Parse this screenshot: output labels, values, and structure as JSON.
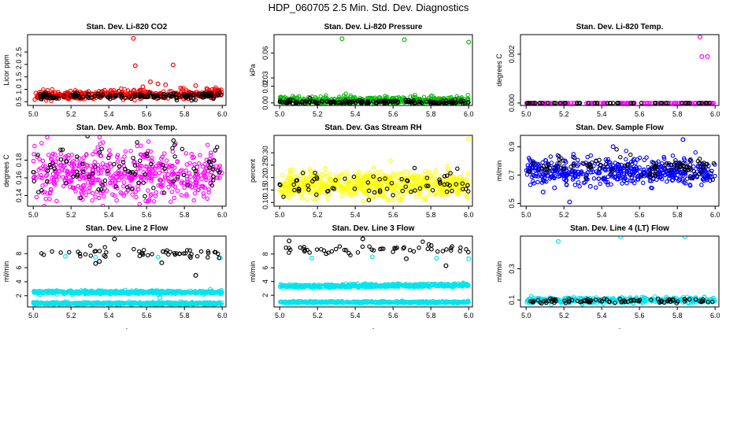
{
  "figure": {
    "title": "HDP_060705  2.5 Min. Std. Dev. Diagnostics",
    "xlabel": "."
  },
  "chart_data": [
    {
      "type": "scatter",
      "title": "Stan. Dev. Li-820 CO2",
      "ylabel": "Licor ppm",
      "xlim": [
        4.97,
        6.02
      ],
      "ylim": [
        0.35,
        3.2
      ],
      "xticks": [
        {
          "v": 5.0,
          "label": "5.0"
        },
        {
          "v": 5.2,
          "label": "5.2"
        },
        {
          "v": 5.4,
          "label": "5.4"
        },
        {
          "v": 5.6,
          "label": "5.6"
        },
        {
          "v": 5.8,
          "label": "5.8"
        },
        {
          "v": 6.0,
          "label": "6.0"
        }
      ],
      "yticks": [
        {
          "v": 0.5,
          "label": "0.5"
        },
        {
          "v": 1.0,
          "label": "1.0"
        },
        {
          "v": 1.5,
          "label": "1.5"
        },
        {
          "v": 2.0,
          "label": "2.0"
        },
        {
          "v": 2.5,
          "label": "2.5"
        }
      ],
      "series": [
        {
          "color": "#ff0000",
          "band": {
            "n": 420,
            "x": [
              5.0,
              6.0
            ],
            "base": 0.75,
            "spread": 0.09,
            "slope": 0.22
          },
          "points": [
            [
              5.53,
              3.05
            ],
            [
              5.54,
              1.95
            ],
            [
              5.74,
              1.98
            ],
            [
              5.62,
              1.3
            ],
            [
              5.66,
              1.22
            ],
            [
              5.7,
              1.18
            ],
            [
              5.86,
              1.15
            ],
            [
              5.78,
              1.05
            ],
            [
              5.58,
              1.1
            ],
            [
              5.96,
              1.0
            ]
          ]
        },
        {
          "color": "#000000",
          "band": {
            "n": 170,
            "x": [
              5.0,
              6.0
            ],
            "base": 0.73,
            "spread": 0.06,
            "slope": 0.03
          },
          "points": []
        }
      ]
    },
    {
      "type": "scatter",
      "title": "Stan. Dev. Li-820 Pressure",
      "ylabel": "kPa",
      "xlim": [
        4.97,
        6.02
      ],
      "ylim": [
        -0.003,
        0.082
      ],
      "xticks": [
        {
          "v": 5.0,
          "label": "5.0"
        },
        {
          "v": 5.2,
          "label": "5.2"
        },
        {
          "v": 5.4,
          "label": "5.4"
        },
        {
          "v": 5.6,
          "label": "5.6"
        },
        {
          "v": 5.8,
          "label": "5.8"
        },
        {
          "v": 6.0,
          "label": "6.0"
        }
      ],
      "yticks": [
        {
          "v": 0.0,
          "label": "0.00"
        },
        {
          "v": 0.02,
          "label": "0.02"
        },
        {
          "v": 0.03,
          "label": "0.03"
        },
        {
          "v": 0.06,
          "label": "0.06"
        }
      ],
      "series": [
        {
          "color": "#00c000",
          "band": {
            "n": 420,
            "x": [
              5.0,
              6.0
            ],
            "base": 0.003,
            "spread": 0.0022,
            "slope": 0.003
          },
          "points": [
            [
              5.33,
              0.077
            ],
            [
              5.66,
              0.076
            ],
            [
              6.0,
              0.073
            ]
          ]
        },
        {
          "color": "#000000",
          "band": {
            "n": 170,
            "x": [
              5.0,
              6.0
            ],
            "base": 0.001,
            "spread": 0.0012,
            "slope": 0.002
          },
          "points": []
        }
      ]
    },
    {
      "type": "scatter",
      "title": "Stan. Dev. Li-820 Temp.",
      "ylabel": "degrees C",
      "xlim": [
        4.97,
        6.02
      ],
      "ylim": [
        -0.0001,
        0.0028
      ],
      "xticks": [
        {
          "v": 5.0,
          "label": "5.0"
        },
        {
          "v": 5.2,
          "label": "5.2"
        },
        {
          "v": 5.4,
          "label": "5.4"
        },
        {
          "v": 5.6,
          "label": "5.6"
        },
        {
          "v": 5.8,
          "label": "5.8"
        },
        {
          "v": 6.0,
          "label": "6.0"
        }
      ],
      "yticks": [
        {
          "v": 0.0,
          "label": "0.000"
        },
        {
          "v": 0.002,
          "label": "0.002"
        }
      ],
      "series": [
        {
          "color": "#ff00ff",
          "band": {
            "n": 130,
            "x": [
              5.0,
              6.0
            ],
            "base": 0.0,
            "spread": 0.0,
            "slope": 0.0
          },
          "points": [
            [
              5.92,
              0.0027
            ],
            [
              5.93,
              0.0019
            ],
            [
              5.96,
              0.0019
            ]
          ]
        },
        {
          "color": "#000000",
          "band": {
            "n": 50,
            "x": [
              5.0,
              6.0
            ],
            "base": 0.0,
            "spread": 0.0,
            "slope": 0.0
          },
          "points": []
        }
      ]
    },
    {
      "type": "scatter",
      "title": "Stan. Dev. Amb. Box Temp.",
      "ylabel": "degrees C",
      "xlim": [
        4.97,
        6.02
      ],
      "ylim": [
        0.128,
        0.208
      ],
      "xticks": [
        {
          "v": 5.0,
          "label": "5.0"
        },
        {
          "v": 5.2,
          "label": "5.2"
        },
        {
          "v": 5.4,
          "label": "5.4"
        },
        {
          "v": 5.6,
          "label": "5.6"
        },
        {
          "v": 5.8,
          "label": "5.8"
        },
        {
          "v": 6.0,
          "label": "6.0"
        }
      ],
      "yticks": [
        {
          "v": 0.14,
          "label": "0.14"
        },
        {
          "v": 0.16,
          "label": "0.16"
        },
        {
          "v": 0.18,
          "label": "0.18"
        }
      ],
      "series": [
        {
          "color": "#ff00ff",
          "band": {
            "n": 520,
            "x": [
              5.0,
              6.0
            ],
            "base": 0.163,
            "spread": 0.016,
            "slope": 0.0
          },
          "points": []
        },
        {
          "color": "#000000",
          "band": {
            "n": 90,
            "x": [
              5.0,
              6.0
            ],
            "base": 0.168,
            "spread": 0.016,
            "slope": 0.0
          },
          "points": []
        }
      ]
    },
    {
      "type": "scatter",
      "title": "Stan. Dev. Gas Stream RH",
      "ylabel": "percent",
      "xlim": [
        4.97,
        6.02
      ],
      "ylim": [
        0.085,
        0.37
      ],
      "xticks": [
        {
          "v": 5.0,
          "label": "5.0"
        },
        {
          "v": 5.2,
          "label": "5.2"
        },
        {
          "v": 5.4,
          "label": "5.4"
        },
        {
          "v": 5.6,
          "label": "5.6"
        },
        {
          "v": 5.8,
          "label": "5.8"
        },
        {
          "v": 6.0,
          "label": "6.0"
        }
      ],
      "yticks": [
        {
          "v": 0.1,
          "label": "0.10"
        },
        {
          "v": 0.15,
          "label": "0.15"
        },
        {
          "v": 0.2,
          "label": "0.20"
        },
        {
          "v": 0.25,
          "label": "0.25"
        },
        {
          "v": 0.3,
          "label": "0.30"
        }
      ],
      "series": [
        {
          "color": "#ffff00",
          "band": {
            "n": 650,
            "x": [
              5.0,
              6.0
            ],
            "base": 0.17,
            "spread": 0.025,
            "slope": 0.0
          },
          "points": [
            [
              6.0,
              0.355
            ]
          ]
        },
        {
          "color": "#000000",
          "band": {
            "n": 70,
            "x": [
              5.0,
              6.0
            ],
            "base": 0.17,
            "spread": 0.025,
            "slope": 0.0
          },
          "points": []
        }
      ]
    },
    {
      "type": "scatter",
      "title": "Stan. Dev. Sample Flow",
      "ylabel": "ml/min",
      "xlim": [
        4.97,
        6.02
      ],
      "ylim": [
        0.48,
        0.98
      ],
      "xticks": [
        {
          "v": 5.0,
          "label": "5.0"
        },
        {
          "v": 5.2,
          "label": "5.2"
        },
        {
          "v": 5.4,
          "label": "5.4"
        },
        {
          "v": 5.6,
          "label": "5.6"
        },
        {
          "v": 5.8,
          "label": "5.8"
        },
        {
          "v": 6.0,
          "label": "6.0"
        }
      ],
      "yticks": [
        {
          "v": 0.5,
          "label": "0.5"
        },
        {
          "v": 0.7,
          "label": "0.7"
        },
        {
          "v": 0.9,
          "label": "0.9"
        }
      ],
      "series": [
        {
          "color": "#0000ff",
          "band": {
            "n": 520,
            "x": [
              5.0,
              6.0
            ],
            "base": 0.72,
            "spread": 0.045,
            "slope": 0.05
          },
          "points": [
            [
              5.23,
              0.51
            ],
            [
              5.09,
              0.58
            ],
            [
              5.34,
              0.62
            ],
            [
              5.15,
              0.61
            ],
            [
              5.83,
              0.95
            ],
            [
              5.46,
              0.9
            ]
          ]
        },
        {
          "color": "#000000",
          "band": {
            "n": 90,
            "x": [
              5.0,
              6.0
            ],
            "base": 0.75,
            "spread": 0.04,
            "slope": 0.05
          },
          "points": []
        }
      ]
    },
    {
      "type": "scatter",
      "title": "Stan. Dev. Line 2 Flow",
      "ylabel": "ml/min",
      "xlim": [
        4.97,
        6.02
      ],
      "ylim": [
        0.4,
        10.5
      ],
      "xticks": [
        {
          "v": 5.0,
          "label": "5.0"
        },
        {
          "v": 5.2,
          "label": "5.2"
        },
        {
          "v": 5.4,
          "label": "5.4"
        },
        {
          "v": 5.6,
          "label": "5.6"
        },
        {
          "v": 5.8,
          "label": "5.8"
        },
        {
          "v": 6.0,
          "label": "6.0"
        }
      ],
      "yticks": [
        {
          "v": 2,
          "label": "2"
        },
        {
          "v": 4,
          "label": "4"
        },
        {
          "v": 6,
          "label": "6"
        },
        {
          "v": 8,
          "label": "8"
        }
      ],
      "series": [
        {
          "color": "#00e5ee",
          "band": {
            "n": 520,
            "x": [
              5.0,
              6.0
            ],
            "base": 2.5,
            "spread": 0.12,
            "slope": 0.0
          },
          "points": [
            [
              5.17,
              7.6
            ],
            [
              5.33,
              7.5
            ],
            [
              5.66,
              7.5
            ],
            [
              5.99,
              7.4
            ],
            [
              5.66,
              2.2
            ],
            [
              5.67,
              1.7
            ]
          ]
        },
        {
          "color": "#00e5ee",
          "band": {
            "n": 520,
            "x": [
              5.0,
              6.0
            ],
            "base": 0.9,
            "spread": 0.08,
            "slope": 0.0
          },
          "points": []
        },
        {
          "color": "#000000",
          "band": {
            "n": 55,
            "x": [
              5.03,
              5.99
            ],
            "base": 8.1,
            "spread": 0.35,
            "slope": 0.0
          },
          "points": [
            [
              5.43,
              10.1
            ],
            [
              5.86,
              4.9
            ],
            [
              5.33,
              6.6
            ],
            [
              5.35,
              6.9
            ],
            [
              5.68,
              6.7
            ]
          ]
        }
      ]
    },
    {
      "type": "scatter",
      "title": "Stan. Dev. Line 3 Flow",
      "ylabel": "ml/min",
      "xlim": [
        4.97,
        6.02
      ],
      "ylim": [
        0.3,
        10.6
      ],
      "xticks": [
        {
          "v": 5.0,
          "label": "5.0"
        },
        {
          "v": 5.2,
          "label": "5.2"
        },
        {
          "v": 5.4,
          "label": "5.4"
        },
        {
          "v": 5.6,
          "label": "5.6"
        },
        {
          "v": 5.8,
          "label": "5.8"
        },
        {
          "v": 6.0,
          "label": "6.0"
        }
      ],
      "yticks": [
        {
          "v": 2,
          "label": "2"
        },
        {
          "v": 4,
          "label": "4"
        },
        {
          "v": 6,
          "label": "6"
        },
        {
          "v": 8,
          "label": "8"
        }
      ],
      "series": [
        {
          "color": "#00e5ee",
          "band": {
            "n": 520,
            "x": [
              5.0,
              6.0
            ],
            "base": 3.3,
            "spread": 0.12,
            "slope": 0.4
          },
          "points": [
            [
              5.17,
              7.4
            ],
            [
              5.49,
              7.6
            ],
            [
              5.83,
              7.4
            ],
            [
              6.0,
              7.3
            ]
          ]
        },
        {
          "color": "#00e5ee",
          "band": {
            "n": 520,
            "x": [
              5.0,
              6.0
            ],
            "base": 1.0,
            "spread": 0.07,
            "slope": 0.0
          },
          "points": []
        },
        {
          "color": "#000000",
          "band": {
            "n": 55,
            "x": [
              5.02,
              6.0
            ],
            "base": 8.6,
            "spread": 0.35,
            "slope": 0.0
          },
          "points": [
            [
              5.05,
              9.9
            ],
            [
              5.44,
              10.2
            ],
            [
              5.88,
              6.3
            ],
            [
              5.67,
              7.3
            ]
          ]
        }
      ]
    },
    {
      "type": "scatter",
      "title": "Stan. Dev. Line 4 (LT) Flow",
      "ylabel": "ml/min",
      "xlim": [
        4.97,
        6.02
      ],
      "ylim": [
        0.055,
        0.51
      ],
      "xticks": [
        {
          "v": 5.0,
          "label": "5.0"
        },
        {
          "v": 5.2,
          "label": "5.2"
        },
        {
          "v": 5.4,
          "label": "5.4"
        },
        {
          "v": 5.6,
          "label": "5.6"
        },
        {
          "v": 5.8,
          "label": "5.8"
        },
        {
          "v": 6.0,
          "label": "6.0"
        }
      ],
      "yticks": [
        {
          "v": 0.1,
          "label": "0.1"
        },
        {
          "v": 0.3,
          "label": "0.3"
        }
      ],
      "series": [
        {
          "color": "#00e5ee",
          "band": {
            "n": 420,
            "x": [
              5.0,
              6.0
            ],
            "base": 0.098,
            "spread": 0.009,
            "slope": 0.0
          },
          "points": [
            [
              5.17,
              0.475
            ],
            [
              5.5,
              0.505
            ],
            [
              5.84,
              0.505
            ]
          ]
        },
        {
          "color": "#000000",
          "band": {
            "n": 90,
            "x": [
              5.0,
              6.0
            ],
            "base": 0.094,
            "spread": 0.006,
            "slope": 0.0
          },
          "points": []
        }
      ]
    }
  ]
}
